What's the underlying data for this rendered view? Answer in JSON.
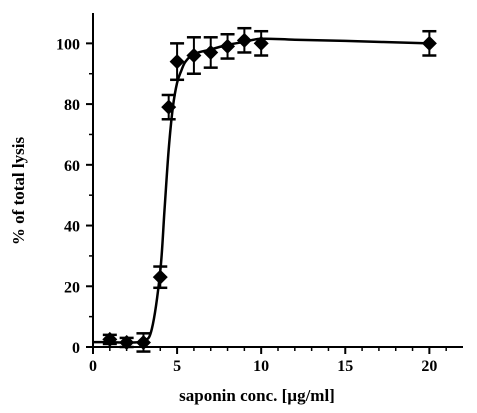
{
  "chart_data": {
    "type": "scatter",
    "xlabel": "saponin conc. [µg/ml]",
    "ylabel": "% of total lysis",
    "xlim": [
      0,
      22
    ],
    "ylim": [
      0,
      110
    ],
    "x_ticks": [
      0,
      5,
      10,
      15,
      20
    ],
    "y_ticks": [
      0,
      20,
      40,
      60,
      80,
      100
    ],
    "x_tick_labels": [
      "0",
      "5",
      "10",
      "15",
      "20"
    ],
    "y_tick_labels": [
      "0",
      "20",
      "40",
      "60",
      "80",
      "100"
    ],
    "grid": false,
    "legend": "none",
    "marker": "diamond",
    "fit_curve": "sigmoid",
    "series": [
      {
        "x": [
          1,
          2,
          3,
          4,
          4.5,
          5,
          6,
          7,
          8,
          9,
          10,
          20
        ],
        "y": [
          2.5,
          1.5,
          1.5,
          23,
          79,
          94,
          96,
          97,
          99,
          101,
          100,
          100
        ],
        "error": [
          1.5,
          1.5,
          3,
          3.5,
          4,
          6,
          6,
          5,
          4,
          4,
          4,
          4
        ]
      }
    ],
    "fit_curve_line": {
      "x": [
        0,
        1,
        2,
        3,
        3.5,
        4,
        4.25,
        4.5,
        4.75,
        5,
        5.25,
        5.5,
        6,
        7,
        8,
        9,
        10,
        12,
        15,
        20
      ],
      "y": [
        1.6,
        1.6,
        1.5,
        2,
        6,
        25,
        45,
        65,
        79,
        87,
        91,
        94,
        96.5,
        98,
        99.5,
        100.5,
        101.5,
        101.2,
        100.8,
        100
      ]
    }
  }
}
